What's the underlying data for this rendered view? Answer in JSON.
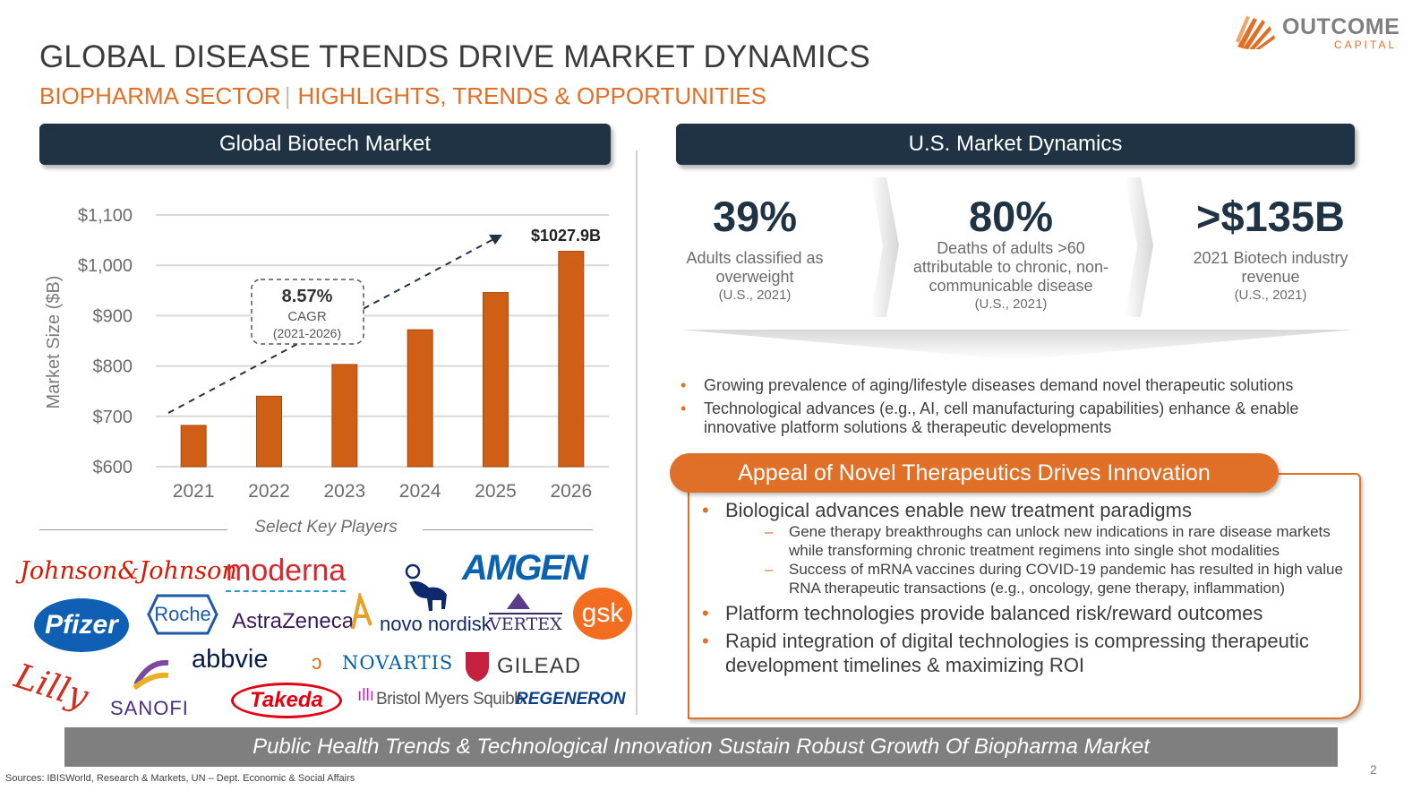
{
  "logo": {
    "name": "OUTCOME",
    "sub": "CAPITAL"
  },
  "title": "GLOBAL DISEASE TRENDS DRIVE MARKET DYNAMICS",
  "subtitle": {
    "left": "BIOPHARMA SECTOR",
    "sep": "|",
    "right": "HIGHLIGHTS, TRENDS & OPPORTUNITIES"
  },
  "left_panel": {
    "header": "Global Biotech Market",
    "key_players_label": "Select Key Players"
  },
  "chart_data": {
    "type": "bar",
    "title": "",
    "ylabel": "Market Size ($B)",
    "xlabel": "",
    "categories": [
      "2021",
      "2022",
      "2023",
      "2024",
      "2025",
      "2026"
    ],
    "values": [
      682,
      740,
      803,
      872,
      946,
      1027.9
    ],
    "ylim": [
      600,
      1100
    ],
    "yticks": [
      600,
      700,
      800,
      900,
      1000,
      1100
    ],
    "ytick_labels": [
      "$600",
      "$700",
      "$800",
      "$900",
      "$1,000",
      "$1,100"
    ],
    "grid": true,
    "last_bar_label": "$1027.9B",
    "cagr": {
      "value": "8.57%",
      "label": "CAGR",
      "period": "(2021-2026)"
    },
    "bar_color": "#cf5f14"
  },
  "key_players": {
    "jnj": "Johnson&Johnson",
    "moderna": "moderna",
    "amgen": "AMGEN",
    "pfizer": "Pfizer",
    "roche": "Roche",
    "astrazeneca": "AstraZeneca",
    "novo": "novo nordisk",
    "vertex": "VERTEX",
    "gsk": "gsk",
    "lilly": "Lilly",
    "sanofi": "SANOFI",
    "abbvie": "abbvie",
    "novartis": "NOVARTIS",
    "gilead": "GILEAD",
    "takeda": "Takeda",
    "bms": "Bristol Myers Squibb",
    "regeneron": "REGENERON"
  },
  "right_panel": {
    "header": "U.S. Market Dynamics",
    "stats": [
      {
        "big": "39%",
        "desc": "Adults classified as overweight",
        "year": "(U.S., 2021)"
      },
      {
        "big": "80%",
        "desc": "Deaths of adults >60 attributable to chronic, non-communicable disease",
        "year": "(U.S., 2021)"
      },
      {
        "big": ">$135B",
        "desc": "2021 Biotech industry revenue",
        "year": "(U.S., 2021)"
      }
    ],
    "bullets": [
      "Growing prevalence of aging/lifestyle diseases demand novel therapeutic solutions",
      "Technological advances (e.g., AI, cell manufacturing capabilities) enhance & enable innovative platform solutions & therapeutic developments"
    ],
    "appeal": {
      "title": "Appeal of Novel Therapeutics Drives Innovation",
      "main1": "Biological advances enable new treatment paradigms",
      "sub1": "Gene therapy breakthroughs can unlock new indications in rare disease markets while transforming chronic treatment regimens into single shot modalities",
      "sub2": "Success of mRNA vaccines during COVID-19 pandemic has resulted in high value RNA therapeutic transactions (e.g., oncology, gene therapy, inflammation)",
      "main2": "Platform technologies provide balanced risk/reward outcomes",
      "main3": "Rapid integration of digital technologies is compressing therapeutic development timelines & maximizing ROI"
    }
  },
  "banner": "Public Health Trends & Technological Innovation Sustain Robust Growth Of Biopharma Market",
  "sources": "Sources: IBISWorld, Research & Markets, UN – Dept. Economic & Social Affairs",
  "page_number": "2"
}
